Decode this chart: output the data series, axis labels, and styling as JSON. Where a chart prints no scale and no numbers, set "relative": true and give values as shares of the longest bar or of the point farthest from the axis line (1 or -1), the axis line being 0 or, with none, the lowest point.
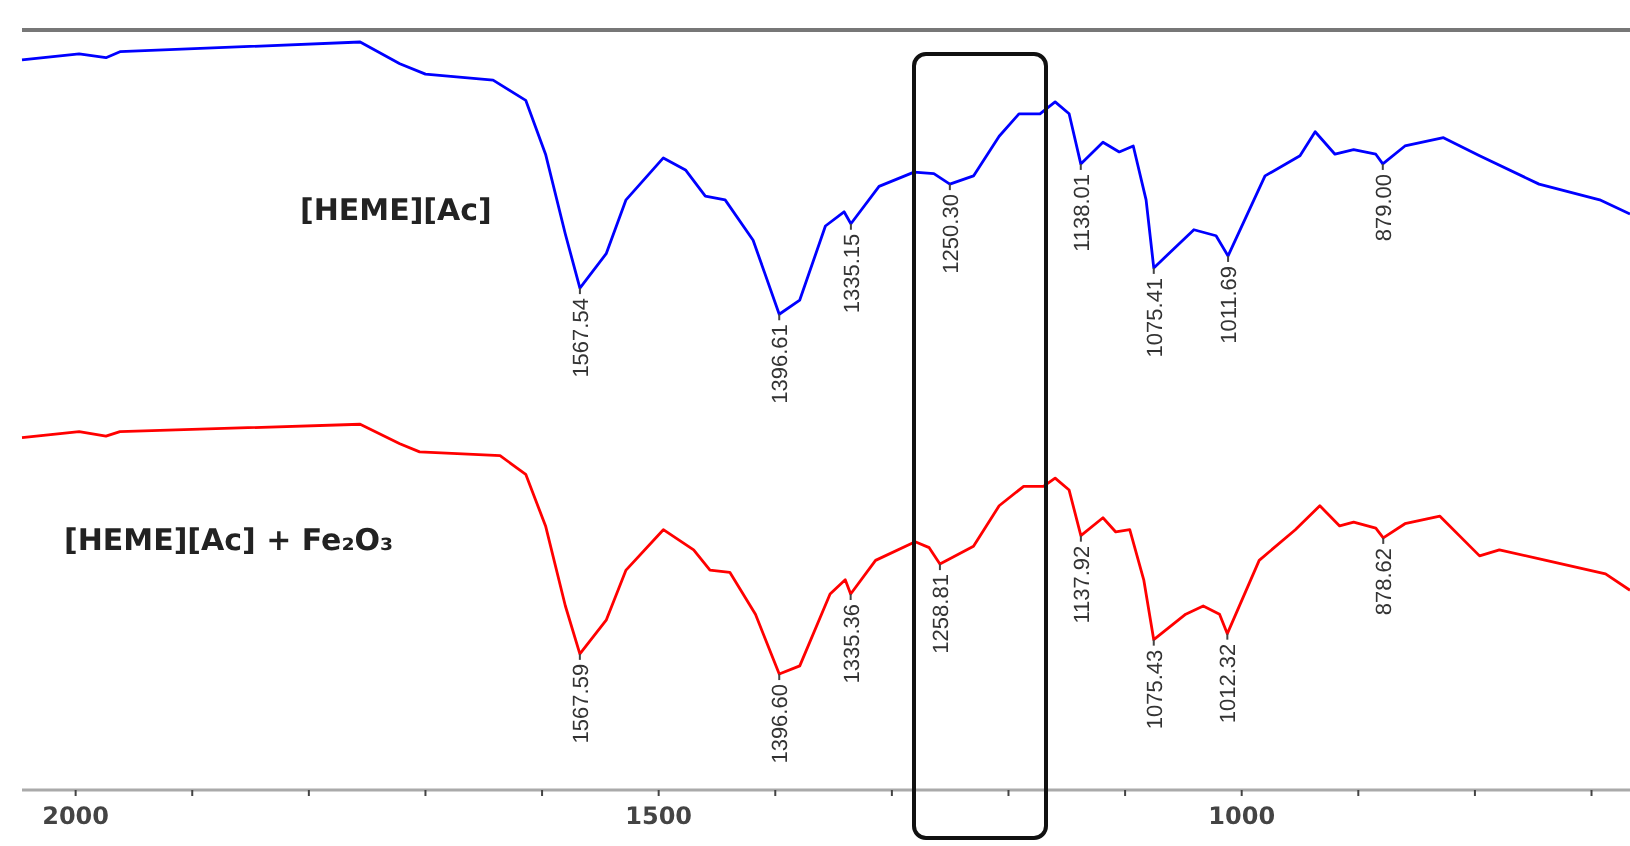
{
  "chart_data": {
    "type": "line",
    "relative": true,
    "xlim": [
      2046,
      667
    ],
    "xticks": [
      2000,
      {
        "value": 1900,
        "label": null
      },
      {
        "value": 1800,
        "label": null
      },
      {
        "value": 1700,
        "label": null
      },
      {
        "value": 1600,
        "label": null
      },
      1500,
      {
        "value": 1400,
        "label": null
      },
      {
        "value": 1300,
        "label": null
      },
      {
        "value": 1200,
        "label": null
      },
      {
        "value": 1100,
        "label": null
      },
      1000,
      {
        "value": 900,
        "label": null
      },
      {
        "value": 800,
        "label": null
      },
      {
        "value": 700,
        "label": null
      }
    ],
    "grid": false,
    "tick_labels": "x",
    "series": [
      {
        "name": "[HEME][Ac]",
        "color": "#0000ff",
        "x": [
          2046,
          1997,
          1974,
          1962,
          1756,
          1722,
          1700,
          1642,
          1614,
          1597,
          1580,
          1567.54,
          1545,
          1528,
          1496,
          1477,
          1460,
          1443,
          1419,
          1396.61,
          1379,
          1357,
          1341,
          1335.15,
          1311,
          1281,
          1264,
          1250.3,
          1230,
          1208,
          1191,
          1173,
          1160,
          1148,
          1138.01,
          1119,
          1105,
          1093,
          1082,
          1075.41,
          1041,
          1022,
          1011.69,
          980,
          950,
          937,
          920,
          904,
          885,
          879.0,
          860,
          827,
          796,
          745,
          693,
          667
        ],
        "values": [
          0.976,
          0.984,
          0.979,
          0.987,
          1.0,
          0.971,
          0.957,
          0.949,
          0.922,
          0.85,
          0.743,
          0.671,
          0.717,
          0.789,
          0.845,
          0.829,
          0.794,
          0.789,
          0.735,
          0.636,
          0.655,
          0.754,
          0.773,
          0.757,
          0.807,
          0.826,
          0.824,
          0.81,
          0.821,
          0.874,
          0.904,
          0.904,
          0.92,
          0.904,
          0.837,
          0.866,
          0.853,
          0.861,
          0.789,
          0.698,
          0.749,
          0.741,
          0.714,
          0.821,
          0.848,
          0.88,
          0.85,
          0.856,
          0.85,
          0.837,
          0.861,
          0.872,
          0.848,
          0.81,
          0.789,
          0.77
        ]
      },
      {
        "name": "[HEME][Ac] + Fe₂O₃",
        "color": "#ff0000",
        "x": [
          2046,
          1997,
          1974,
          1962,
          1756,
          1722,
          1705,
          1636,
          1614,
          1597,
          1580,
          1567.59,
          1545,
          1528,
          1496,
          1470,
          1456,
          1439,
          1417,
          1396.6,
          1379,
          1353,
          1340,
          1335.36,
          1314,
          1280,
          1268,
          1258.81,
          1230,
          1208,
          1187,
          1170,
          1160,
          1148,
          1137.92,
          1119,
          1108,
          1096,
          1084,
          1075.43,
          1048,
          1033,
          1019,
          1012.32,
          985,
          954,
          933,
          916,
          904,
          885,
          878.62,
          860,
          830,
          796,
          779,
          739,
          688,
          667
        ],
        "values": [
          0.471,
          0.479,
          0.473,
          0.479,
          0.489,
          0.463,
          0.452,
          0.447,
          0.422,
          0.353,
          0.246,
          0.182,
          0.227,
          0.294,
          0.348,
          0.321,
          0.294,
          0.291,
          0.235,
          0.155,
          0.166,
          0.262,
          0.281,
          0.262,
          0.307,
          0.332,
          0.324,
          0.302,
          0.326,
          0.38,
          0.406,
          0.406,
          0.417,
          0.401,
          0.34,
          0.364,
          0.345,
          0.348,
          0.281,
          0.201,
          0.235,
          0.246,
          0.235,
          0.209,
          0.307,
          0.348,
          0.38,
          0.353,
          0.358,
          0.35,
          0.337,
          0.356,
          0.366,
          0.313,
          0.321,
          0.307,
          0.289,
          0.267
        ]
      }
    ],
    "annotations": [
      {
        "text": "1567.54",
        "x": 1567.54,
        "y": 0.671
      },
      {
        "text": "1396.61",
        "x": 1396.61,
        "y": 0.636
      },
      {
        "text": "1335.15",
        "x": 1335.15,
        "y": 0.757
      },
      {
        "text": "1250.30",
        "x": 1250.3,
        "y": 0.81
      },
      {
        "text": "1138.01",
        "x": 1138.01,
        "y": 0.837
      },
      {
        "text": "1075.41",
        "x": 1075.41,
        "y": 0.698
      },
      {
        "text": "1011.69",
        "x": 1011.69,
        "y": 0.714
      },
      {
        "text": "879.00",
        "x": 879.0,
        "y": 0.837
      },
      {
        "text": "1567.59",
        "x": 1567.59,
        "y": 0.182
      },
      {
        "text": "1396.60",
        "x": 1396.6,
        "y": 0.155
      },
      {
        "text": "1335.36",
        "x": 1335.36,
        "y": 0.262
      },
      {
        "text": "1258.81",
        "x": 1258.81,
        "y": 0.302
      },
      {
        "text": "1137.92",
        "x": 1137.92,
        "y": 0.34
      },
      {
        "text": "1075.43",
        "x": 1075.43,
        "y": 0.201
      },
      {
        "text": "1012.32",
        "x": 1012.32,
        "y": 0.209
      },
      {
        "text": "878.62",
        "x": 878.62,
        "y": 0.337
      }
    ]
  }
}
